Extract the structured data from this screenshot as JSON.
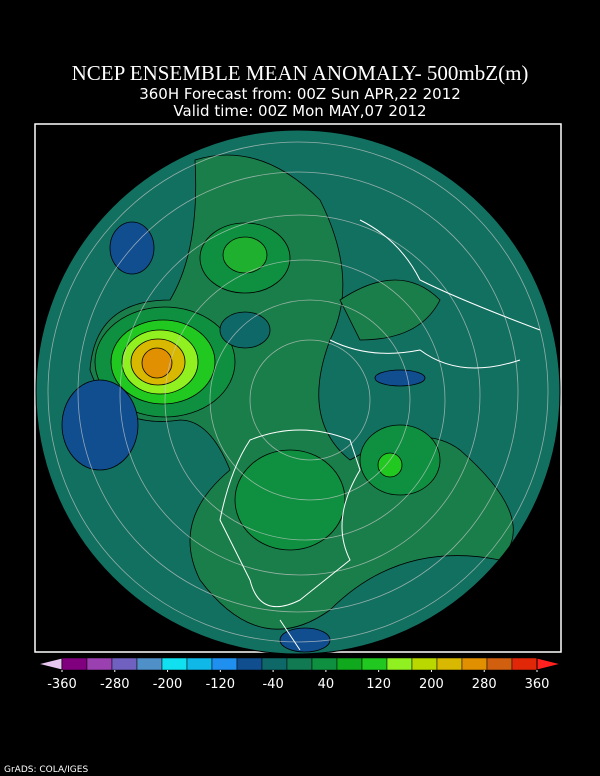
{
  "header": {
    "title": "NCEP ENSEMBLE MEAN ANOMALY- 500mbZ(m)",
    "subtitle": "360H Forecast from: 00Z Sun APR,22 2012",
    "valid_time": "Valid time: 00Z Mon MAY,07 2012"
  },
  "colorbar": {
    "ticks": [
      -360,
      -280,
      -200,
      -120,
      -40,
      40,
      120,
      200,
      280,
      360
    ],
    "colors": [
      "#e8c8f0",
      "#80007e",
      "#9a40b0",
      "#7060c0",
      "#5090c8",
      "#10e0f0",
      "#10b8e8",
      "#2090f0",
      "#104e90",
      "#0e6868",
      "#127a52",
      "#0e9040",
      "#10a81c",
      "#20c820",
      "#90f020",
      "#b8d800",
      "#d8b800",
      "#e09000",
      "#d06010",
      "#e02808",
      "#ff2020"
    ]
  },
  "footer": {
    "credit": "GrADS: COLA/IGES"
  }
}
